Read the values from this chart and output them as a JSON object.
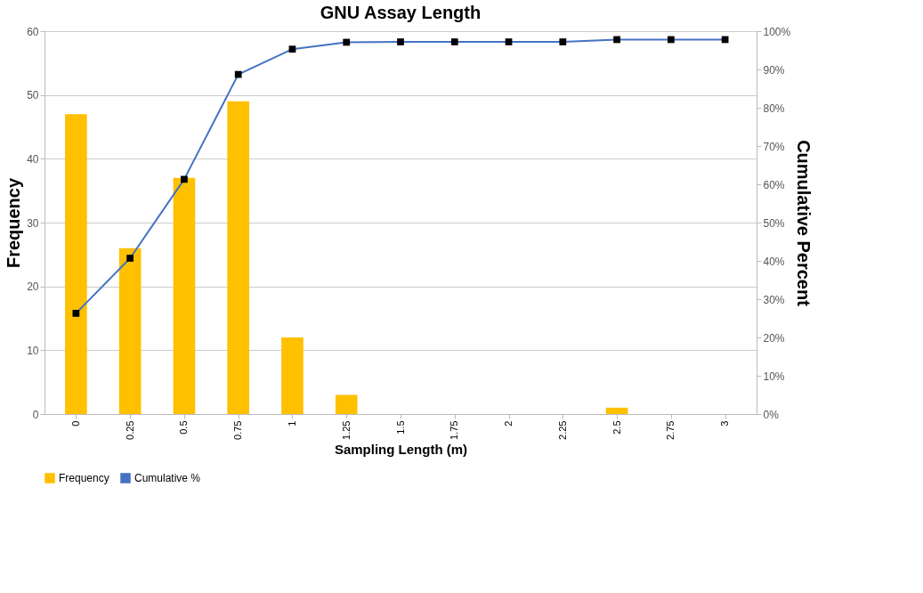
{
  "chart_data": {
    "type": "bar",
    "title": "GNU Assay Length",
    "xlabel": "Sampling Length (m)",
    "ylabel": "Frequency",
    "y2label": "Cumulative Percent",
    "categories": [
      "0",
      "0.25",
      "0.5",
      "0.75",
      "1",
      "1.25",
      "1.5",
      "1.75",
      "2",
      "2.25",
      "2.5",
      "2.75",
      "3"
    ],
    "series": [
      {
        "name": "Frequency",
        "color": "#ffc000",
        "values": [
          47,
          26,
          37,
          49,
          12,
          3,
          0,
          0,
          0,
          0,
          1,
          0,
          0
        ]
      },
      {
        "name": "Cumulative %",
        "type": "line",
        "axis": "y2",
        "color": "#4472c4",
        "marker": "square",
        "values": [
          26.3,
          40.7,
          61.3,
          88.7,
          95.3,
          97.1,
          97.2,
          97.2,
          97.2,
          97.2,
          97.8,
          97.8,
          97.8
        ]
      }
    ],
    "ylim": [
      0,
      60
    ],
    "yticks": [
      0,
      10,
      20,
      30,
      40,
      50,
      60
    ],
    "y2lim": [
      0,
      100
    ],
    "y2ticks": [
      {
        "value": 0,
        "label": "0%"
      },
      {
        "value": 10,
        "label": "10%"
      },
      {
        "value": 20,
        "label": "20%"
      },
      {
        "value": 30,
        "label": "30%"
      },
      {
        "value": 40,
        "label": "40%"
      },
      {
        "value": 50,
        "label": "50%"
      },
      {
        "value": 60,
        "label": "60%"
      },
      {
        "value": 70,
        "label": "70%"
      },
      {
        "value": 80,
        "label": "80%"
      },
      {
        "value": 90,
        "label": "90%"
      },
      {
        "value": 100,
        "label": "100%"
      }
    ],
    "grid": "y",
    "legend": "bottom"
  }
}
